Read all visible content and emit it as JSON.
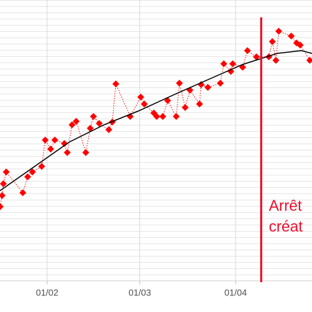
{
  "chart_data": {
    "type": "line",
    "xlim": [
      17.25,
      114.9
    ],
    "ylim": [
      0,
      100
    ],
    "xticks": [
      {
        "value": 32,
        "label": "01/02"
      },
      {
        "value": 61,
        "label": "01/03"
      },
      {
        "value": 91,
        "label": "01/04"
      }
    ],
    "grid": true,
    "series": [
      {
        "color": "#ff0000",
        "marker": "diamond",
        "line_style": "dotted",
        "x": [
          17.3,
          17.9,
          18.3,
          19.2,
          24.4,
          25.9,
          27.4,
          30.3,
          31.4,
          33.1,
          34.4,
          37.4,
          38.3,
          39.8,
          41.1,
          44.1,
          45.5,
          46.5,
          48.3,
          51.3,
          52.4,
          53.5,
          58.0,
          61.3,
          62.4,
          65.4,
          66.3,
          68.2,
          69.7,
          72.4,
          73.4,
          75.2,
          76.7,
          79.7,
          80.2,
          82.3,
          86.2,
          87.3,
          89.5,
          90.1,
          93.2,
          94.7,
          97.5,
          101.4,
          102.5,
          103.6,
          104.5,
          108.4,
          110.1,
          111.2,
          114.2
        ],
        "values": [
          25.5,
          29.5,
          33.75,
          38,
          30.5,
          36.25,
          38,
          40,
          49.5,
          46.25,
          49.5,
          48.25,
          45,
          55,
          56.25,
          45,
          53.75,
          58,
          55.5,
          53.25,
          56,
          69.75,
          58,
          65,
          62.5,
          59.25,
          58,
          58,
          63.75,
          58,
          70,
          61.25,
          67.5,
          62.5,
          69.5,
          68.5,
          70,
          77,
          74.25,
          77,
          75.75,
          81.75,
          79.5,
          79.5,
          85,
          78.25,
          88.75,
          87,
          84.5,
          83.75,
          78.25
        ]
      },
      {
        "color": "#000000",
        "marker": "none",
        "line_style": "solid",
        "x": [
          17.25,
          28.1,
          38.9,
          49.8,
          60.6,
          71.5,
          82.3,
          93.2,
          104,
          111.6,
          114.9
        ],
        "values": [
          31.25,
          40,
          48.75,
          55,
          60,
          65.75,
          71.25,
          76.75,
          80.75,
          81.75,
          80.75
        ]
      }
    ],
    "vline": {
      "x": 99.0,
      "color": "#e8112d",
      "text": [
        "Arrêt",
        "créat"
      ]
    }
  }
}
